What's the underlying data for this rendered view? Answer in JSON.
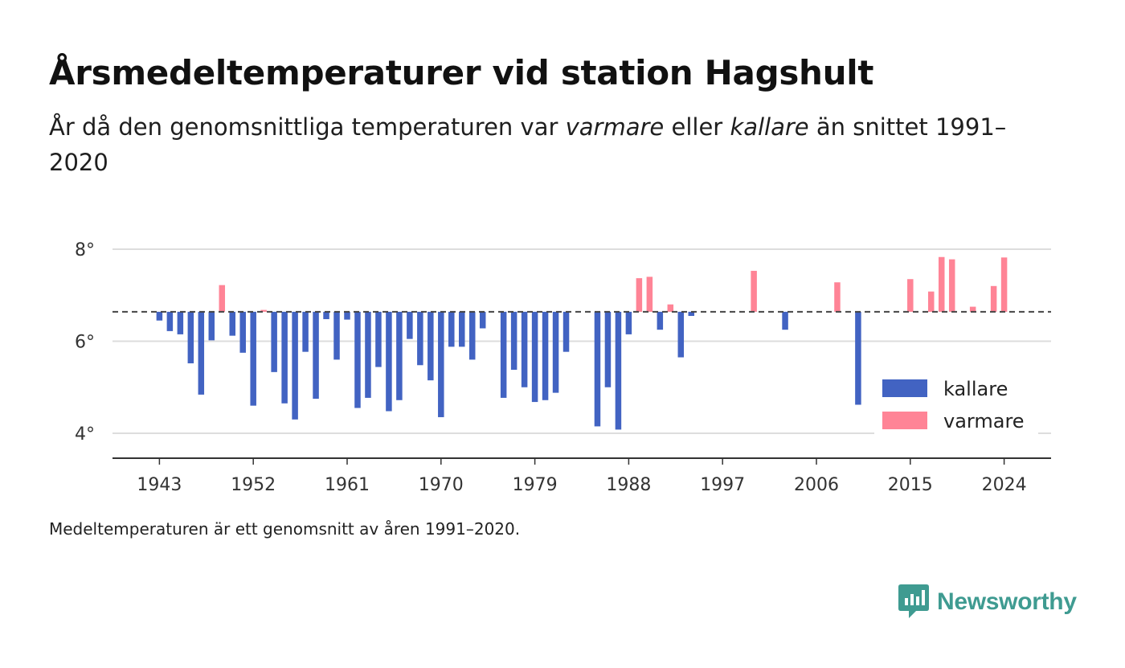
{
  "title": "Årsmedeltemperaturer vid station Hagshult",
  "subtitle": {
    "part1": "År då den genomsnittliga temperaturen var ",
    "warm_word": "varmare",
    "part2": " eller ",
    "cold_word": "kallare",
    "part3": " än snittet 1991–2020"
  },
  "footnote": "Medeltemperaturen är ett genomsnitt av åren 1991–2020.",
  "brand": {
    "name": "Newsworthy",
    "icon": "newsworthy-logo-icon"
  },
  "colors": {
    "cold": "#4263c2",
    "warm": "#ff8496",
    "gridline": "#dddddd",
    "baseline": "#444444"
  },
  "chart_data": {
    "type": "bar",
    "baseline_value": 6.64,
    "baseline_style": "dashed",
    "xticks": [
      1943,
      1952,
      1961,
      1970,
      1979,
      1988,
      1997,
      2006,
      2015,
      2024
    ],
    "xlim": [
      1938.5,
      2028.5
    ],
    "yticks": [
      {
        "value": 4,
        "label": "4°"
      },
      {
        "value": 6,
        "label": "6°"
      },
      {
        "value": 8,
        "label": "8°"
      }
    ],
    "ylim": [
      3.45,
      8.5
    ],
    "grid": true,
    "legend": {
      "position": "bottom-right",
      "entries": [
        {
          "key": "cold",
          "label": "kallare"
        },
        {
          "key": "warm",
          "label": "varmare"
        }
      ]
    },
    "x": [
      1943,
      1944,
      1945,
      1946,
      1947,
      1948,
      1949,
      1950,
      1951,
      1952,
      1953,
      1954,
      1955,
      1956,
      1957,
      1958,
      1959,
      1960,
      1961,
      1962,
      1963,
      1964,
      1965,
      1966,
      1967,
      1968,
      1969,
      1970,
      1971,
      1972,
      1973,
      1974,
      1976,
      1977,
      1978,
      1979,
      1980,
      1981,
      1982,
      1985,
      1986,
      1987,
      1988,
      1989,
      1990,
      1991,
      1992,
      1993,
      1994,
      2000,
      2003,
      2008,
      2010,
      2015,
      2017,
      2018,
      2019,
      2021,
      2023,
      2024
    ],
    "values": [
      6.45,
      6.22,
      6.15,
      5.52,
      4.84,
      6.02,
      7.22,
      6.12,
      5.75,
      4.6,
      6.68,
      5.33,
      4.65,
      4.3,
      5.77,
      4.75,
      6.48,
      5.6,
      6.47,
      4.55,
      4.77,
      5.44,
      4.48,
      4.72,
      6.05,
      5.48,
      5.15,
      4.35,
      5.88,
      5.88,
      5.6,
      6.28,
      4.77,
      5.38,
      5.0,
      4.68,
      4.72,
      4.88,
      5.77,
      4.15,
      5.0,
      4.08,
      6.15,
      7.37,
      7.4,
      6.25,
      6.8,
      5.65,
      6.55,
      7.53,
      6.25,
      7.28,
      4.62,
      7.35,
      7.08,
      7.83,
      7.78,
      6.75,
      7.2,
      7.82
    ]
  }
}
